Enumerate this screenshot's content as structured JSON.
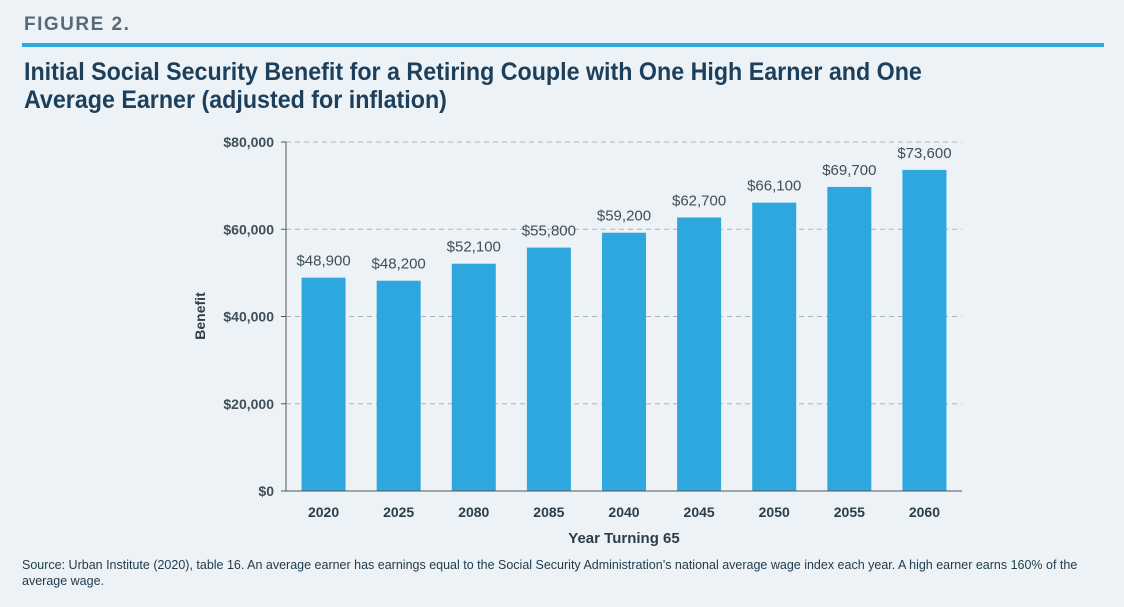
{
  "figure_label": "FIGURE 2.",
  "title": "Initial Social Security Benefit for a Retiring Couple with One High Earner and One Average Earner (adjusted for inflation)",
  "source_note": "Source: Urban Institute (2020), table 16. An average earner has earnings equal to the Social Security Administration’s national average wage index each year. A high earner earns 160% of the average wage.",
  "colors": {
    "bar": "#2ea7df",
    "accent_rule": "#2ea7df",
    "title": "#1c3f5c",
    "background": "#edf2f6"
  },
  "chart_data": {
    "type": "bar",
    "categories": [
      "2020",
      "2025",
      "2080",
      "2085",
      "2040",
      "2045",
      "2050",
      "2055",
      "2060"
    ],
    "values": [
      48900,
      48200,
      52100,
      55800,
      59200,
      62700,
      66100,
      69700,
      73600
    ],
    "data_labels": [
      "$48,900",
      "$48,200",
      "$52,100",
      "$55,800",
      "$59,200",
      "$62,700",
      "$66,100",
      "$69,700",
      "$73,600"
    ],
    "xlabel": "Year Turning 65",
    "ylabel": "Benefit",
    "ylim": [
      0,
      80000
    ],
    "yticks": [
      0,
      20000,
      40000,
      60000,
      80000
    ],
    "ytick_labels": [
      "$0",
      "$20,000",
      "$40,000",
      "$60,000",
      "$80,000"
    ],
    "grid": "horizontal dashed",
    "legend": "none"
  }
}
